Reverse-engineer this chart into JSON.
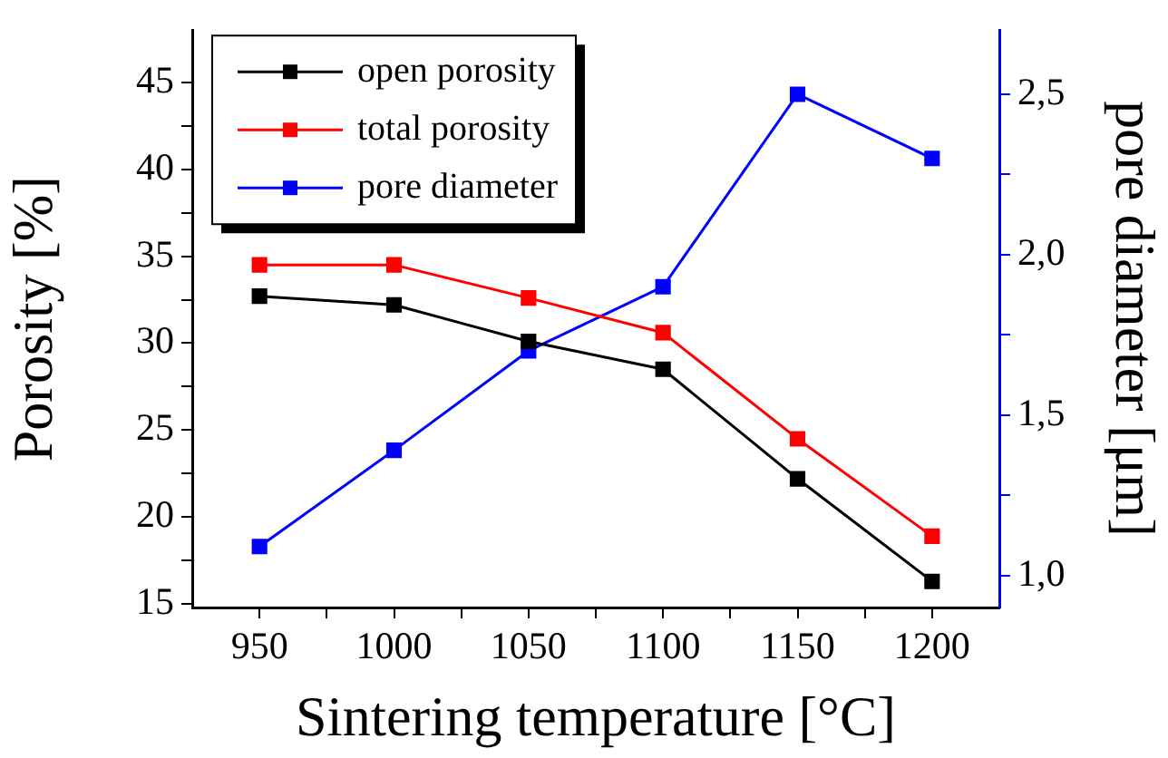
{
  "chart_data": {
    "type": "line",
    "xlabel": "Sintering temperature [°C]",
    "ylabel": "Porosity [%]",
    "y2label": "pore diameter [μm]",
    "x": [
      950,
      1000,
      1050,
      1100,
      1150,
      1200
    ],
    "xlim": [
      925,
      1225
    ],
    "xticks": [
      950,
      {
        "value": 975,
        "label": null
      },
      1000,
      {
        "value": 1025,
        "label": null
      },
      1050,
      {
        "value": 1075,
        "label": null
      },
      1100,
      {
        "value": 1125,
        "label": null
      },
      1150,
      {
        "value": 1175,
        "label": null
      },
      1200
    ],
    "ylim": [
      14.8,
      48
    ],
    "yticks": [
      15,
      {
        "value": 17.5,
        "label": null
      },
      20,
      {
        "value": 22.5,
        "label": null
      },
      25,
      {
        "value": 27.5,
        "label": null
      },
      30,
      {
        "value": 32.5,
        "label": null
      },
      35,
      {
        "value": 37.5,
        "label": null
      },
      40,
      {
        "value": 42.5,
        "label": null
      },
      45
    ],
    "y2lim": [
      0.9,
      2.7
    ],
    "y2ticks": [
      {
        "value": 1.0,
        "label": "1,0"
      },
      {
        "value": 1.25,
        "label": null
      },
      {
        "value": 1.5,
        "label": "1,5"
      },
      {
        "value": 1.75,
        "label": null
      },
      {
        "value": 2.0,
        "label": "2,0"
      },
      {
        "value": 2.25,
        "label": null
      },
      {
        "value": 2.5,
        "label": "2,5"
      }
    ],
    "grid": false,
    "legend": "top left",
    "marker": "square",
    "line_style": "solid",
    "series": [
      {
        "name": "open porosity",
        "color": "#000000",
        "values": [
          32.7,
          32.2,
          30.1,
          28.5,
          22.2,
          16.3
        ]
      },
      {
        "name": "total porosity",
        "color": "#ff0000",
        "values": [
          34.5,
          34.5,
          32.6,
          30.6,
          24.5,
          18.9
        ]
      },
      {
        "name": "pore diameter",
        "color": "#0000ff",
        "axis": "y2",
        "values": [
          1.09,
          1.39,
          1.7,
          1.9,
          2.5,
          2.3
        ]
      }
    ]
  }
}
